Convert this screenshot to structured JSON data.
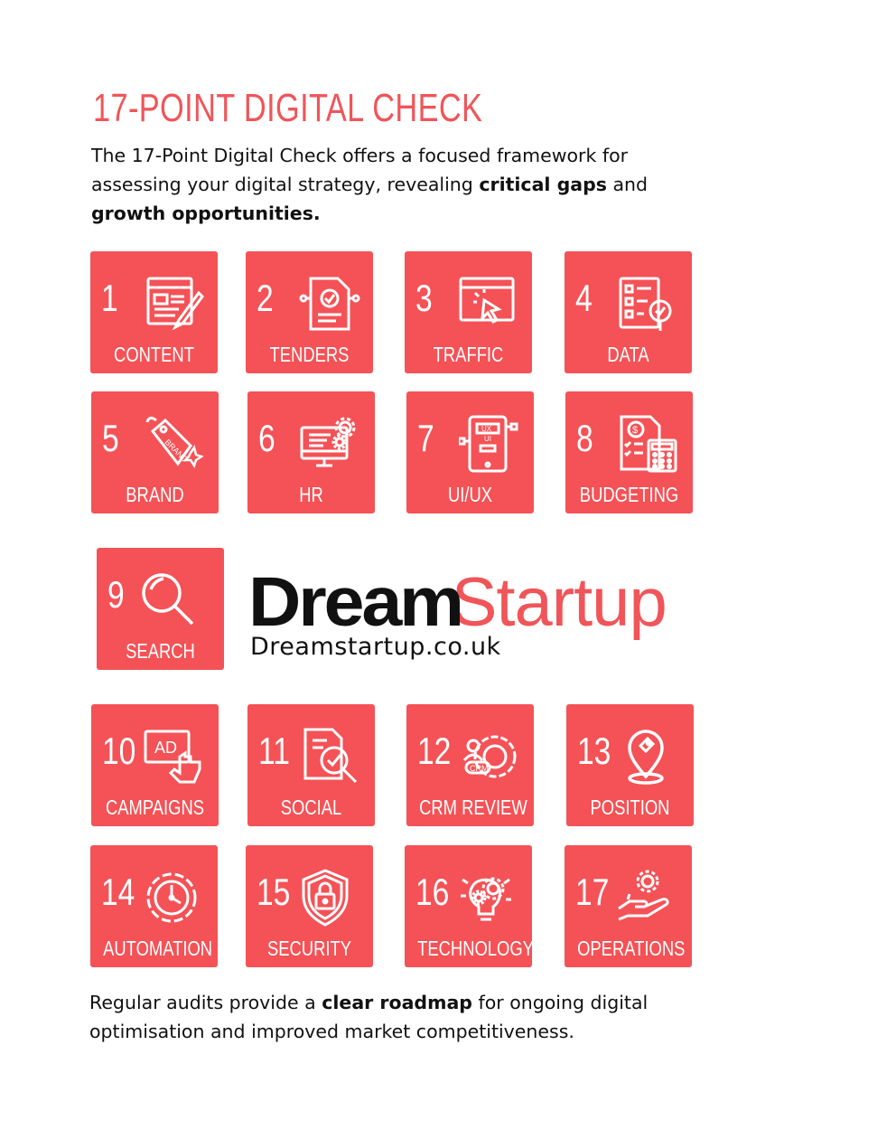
{
  "header": {
    "title": "17-POINT DIGITAL CHECK",
    "intro_part1": "The 17-Point Digital Check offers a focused framework for assessing your digital strategy, revealing ",
    "intro_bold1": "critical gaps",
    "intro_part2": " and ",
    "intro_bold2": "growth opportunities."
  },
  "tiles": [
    {
      "num": "1",
      "label": "CONTENT",
      "icon": "content-icon"
    },
    {
      "num": "2",
      "label": "TENDERS",
      "icon": "document-check-icon"
    },
    {
      "num": "3",
      "label": "TRAFFIC",
      "icon": "browser-cursor-icon"
    },
    {
      "num": "4",
      "label": "DATA",
      "icon": "checklist-magnifier-icon"
    },
    {
      "num": "5",
      "label": "BRAND",
      "icon": "brand-tag-icon"
    },
    {
      "num": "6",
      "label": "HR",
      "icon": "monitor-gears-icon"
    },
    {
      "num": "7",
      "label": "UI/UX",
      "icon": "tablet-ux-icon"
    },
    {
      "num": "8",
      "label": "BUDGETING",
      "icon": "invoice-calculator-icon"
    },
    {
      "num": "9",
      "label": "SEARCH",
      "icon": "search-icon"
    },
    {
      "num": "10",
      "label": "CAMPAIGNS",
      "icon": "ad-click-icon"
    },
    {
      "num": "11",
      "label": "SOCIAL",
      "icon": "document-search-icon"
    },
    {
      "num": "12",
      "label": "CRM REVIEW",
      "icon": "crm-gear-icon"
    },
    {
      "num": "13",
      "label": "POSITION",
      "icon": "location-pin-icon"
    },
    {
      "num": "14",
      "label": "AUTOMATION",
      "icon": "clock-gear-icon"
    },
    {
      "num": "15",
      "label": "SECURITY",
      "icon": "shield-lock-icon"
    },
    {
      "num": "16",
      "label": "TECHNOLOGY",
      "icon": "bulb-gear-icon"
    },
    {
      "num": "17",
      "label": "OPERATIONS",
      "icon": "hand-gear-icon"
    }
  ],
  "logo": {
    "dream": "Dream",
    "startup": "Startup",
    "website": "Dreamstartup.co.uk",
    "dream_color": "#111111",
    "startup_color": "#f0555a"
  },
  "footer": {
    "part1": "Regular audits provide a ",
    "bold": "clear roadmap",
    "part2": " for ongoing digital optimisation and improved market competitiveness."
  },
  "colors": {
    "accent": "#f45256",
    "title": "#f0555a"
  }
}
